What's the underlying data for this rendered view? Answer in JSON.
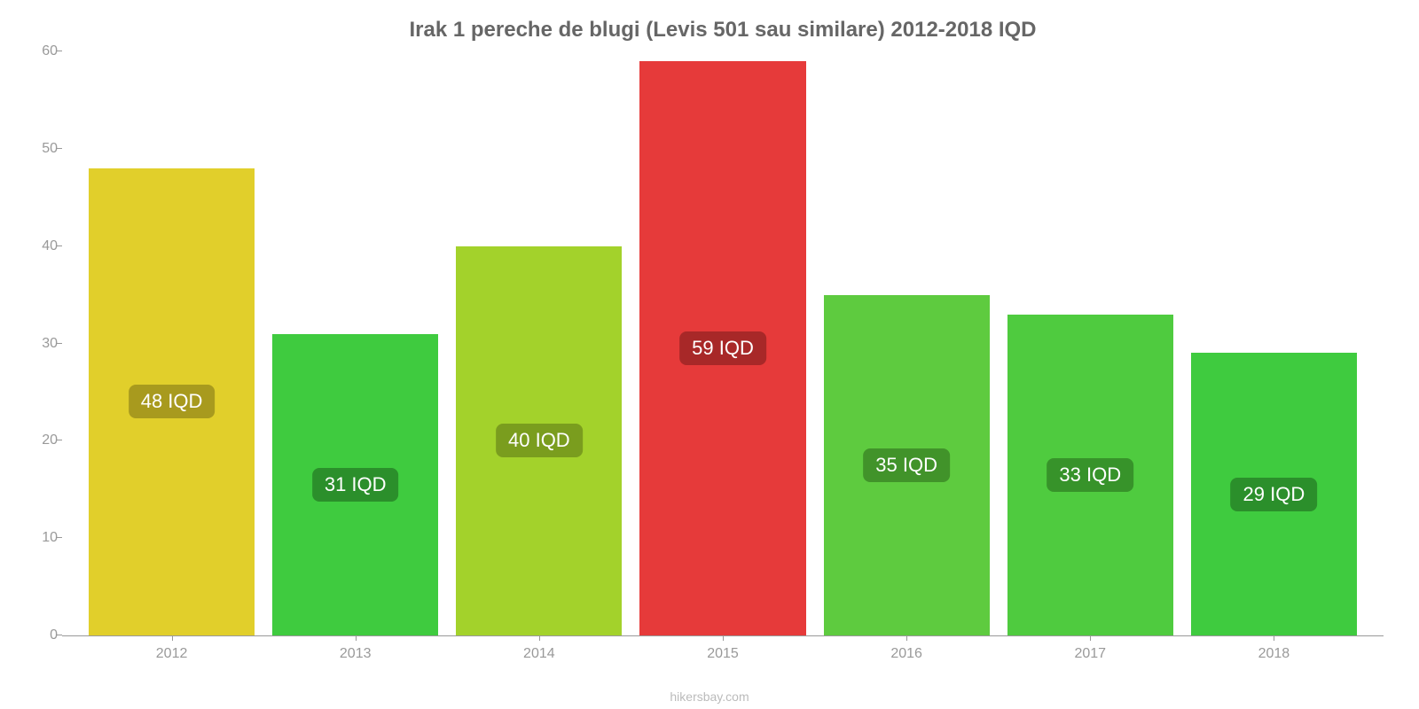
{
  "chart": {
    "type": "bar",
    "title": "Irak 1 pereche de blugi (Levis 501 sau similare) 2012-2018 IQD",
    "title_fontsize": 24,
    "title_color": "#666666",
    "background_color": "#ffffff",
    "attribution": "hikersbay.com",
    "attribution_color": "#bbbbbb",
    "ylim": [
      0,
      60
    ],
    "ytick_step": 10,
    "yticks": [
      0,
      10,
      20,
      30,
      40,
      50,
      60
    ],
    "axis_color": "#999999",
    "tick_label_color": "#999999",
    "tick_label_fontsize": 16,
    "bar_label_fontsize": 22,
    "bar_label_text_color": "#ffffff",
    "bar_label_radius": 8,
    "categories": [
      "2012",
      "2013",
      "2014",
      "2015",
      "2016",
      "2017",
      "2018"
    ],
    "bars": [
      {
        "value": 48,
        "label": "48 IQD",
        "bar_color": "#e1cf2b",
        "label_bg": "#a89a1e"
      },
      {
        "value": 31,
        "label": "31 IQD",
        "bar_color": "#3fcb3f",
        "label_bg": "#2b8f2b"
      },
      {
        "value": 40,
        "label": "40 IQD",
        "bar_color": "#a3d22b",
        "label_bg": "#7a9d1e"
      },
      {
        "value": 59,
        "label": "59 IQD",
        "bar_color": "#e63a3a",
        "label_bg": "#a82828"
      },
      {
        "value": 35,
        "label": "35 IQD",
        "bar_color": "#5ecb3f",
        "label_bg": "#41932a"
      },
      {
        "value": 33,
        "label": "33 IQD",
        "bar_color": "#4fcb3f",
        "label_bg": "#37932a"
      },
      {
        "value": 29,
        "label": "29 IQD",
        "bar_color": "#3fcb3f",
        "label_bg": "#2b8f2b"
      }
    ]
  }
}
